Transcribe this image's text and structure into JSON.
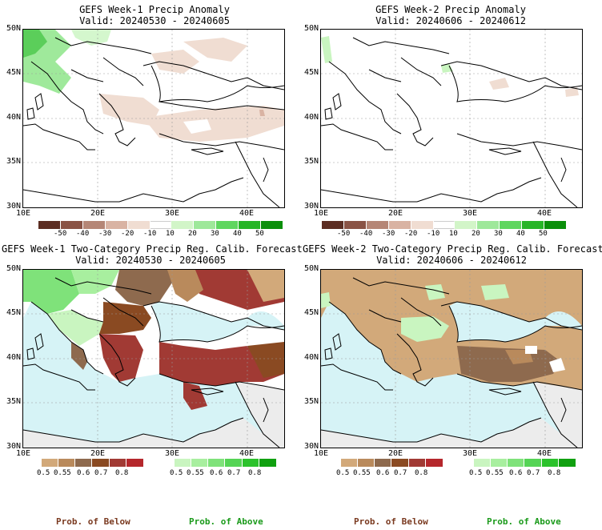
{
  "panels": [
    {
      "title_line1": "GEFS Week-1 Precip Anomaly",
      "title_line2": "Valid: 20240530 - 20240605"
    },
    {
      "title_line1": "GEFS Week-2 Precip Anomaly",
      "title_line2": "Valid: 20240606 - 20240612"
    },
    {
      "title_line1": "GEFS Week-1 Two-Category Precip Reg. Calib. Forecast",
      "title_line2": "Valid: 20240530 - 20240605"
    },
    {
      "title_line1": "GEFS Week-2 Two-Category Precip Reg. Calib. Forecast",
      "title_line2": "Valid: 20240606 - 20240612"
    }
  ],
  "lat_labels": [
    "50N",
    "45N",
    "40N",
    "35N",
    "30N"
  ],
  "lon_labels": [
    "10E",
    "20E",
    "30E",
    "40E"
  ],
  "anomaly_colorbar": {
    "labels": [
      "-50",
      "-40",
      "-30",
      "-20",
      "-10",
      "10",
      "20",
      "30",
      "40",
      "50"
    ],
    "colors": [
      "#5c2d22",
      "#8a5345",
      "#b58676",
      "#d9b3a3",
      "#f0ddd2",
      "#ffffff",
      "#d2f5c8",
      "#9ee89a",
      "#5fd65f",
      "#27b527",
      "#0a8f0a"
    ]
  },
  "prob_colorbar_below": {
    "labels": [
      "0.5",
      "0.55",
      "0.6",
      "0.7",
      "0.8"
    ],
    "colors": [
      "#d2a97a",
      "#b98a5c",
      "#8e6a4e",
      "#8a4a22",
      "#a13a34",
      "#b5272c"
    ]
  },
  "prob_colorbar_above": {
    "labels": [
      "0.5",
      "0.55",
      "0.6",
      "0.7",
      "0.8"
    ],
    "colors": [
      "#c9f5c0",
      "#a8ef9f",
      "#7fe27a",
      "#55d455",
      "#2bc22b",
      "#10a010"
    ]
  },
  "legend": {
    "below_label": "Prob. of Below",
    "above_label": "Prob. of Above",
    "below_color": "#7a3a20",
    "above_color": "#1a9a1a"
  },
  "colors": {
    "sea": "#d6f3f6",
    "outside_domain": "#ececec",
    "land_default": "#ffffff"
  }
}
